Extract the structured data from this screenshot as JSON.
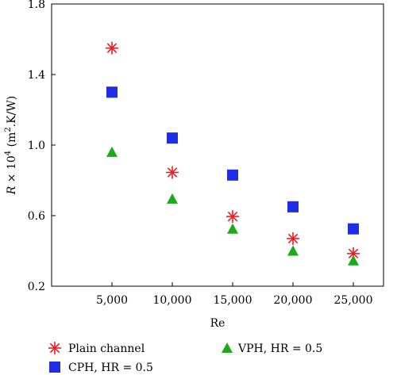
{
  "chart_data": {
    "type": "scatter",
    "xlabel": "Re",
    "ylabel_parts": {
      "var": "R",
      "times": " × 10",
      "exp": "4",
      "unit_open": "  (m",
      "unit_exp": "2",
      "unit_close": ".K/W)"
    },
    "xlim": [
      0,
      27500
    ],
    "ylim": [
      0.2,
      1.8
    ],
    "x_ticks": [
      5000,
      10000,
      15000,
      20000,
      25000
    ],
    "x_tick_labels": [
      "5,000",
      "10,000",
      "15,000",
      "20,000",
      "25,000"
    ],
    "y_ticks": [
      0.2,
      0.6,
      1.0,
      1.4,
      1.8
    ],
    "y_tick_labels": [
      "0.2",
      "0.6",
      "1.0",
      "1.4",
      "1.8"
    ],
    "grid": false,
    "legend_position": "bottom",
    "x": [
      5000,
      10000,
      15000,
      20000,
      25000
    ],
    "series": [
      {
        "name": "Plain channel",
        "marker": "asterisk",
        "color": "#ee1c25",
        "values": [
          1.55,
          0.845,
          0.595,
          0.47,
          0.385
        ]
      },
      {
        "name": "CPH, HR = 0.5",
        "marker": "square",
        "color": "#1f2de6",
        "values": [
          1.3,
          1.04,
          0.83,
          0.65,
          0.525
        ]
      },
      {
        "name": "VPH, HR = 0.5",
        "marker": "triangle",
        "color": "#1aaa1a",
        "values": [
          0.96,
          0.695,
          0.525,
          0.4,
          0.345
        ]
      }
    ]
  }
}
